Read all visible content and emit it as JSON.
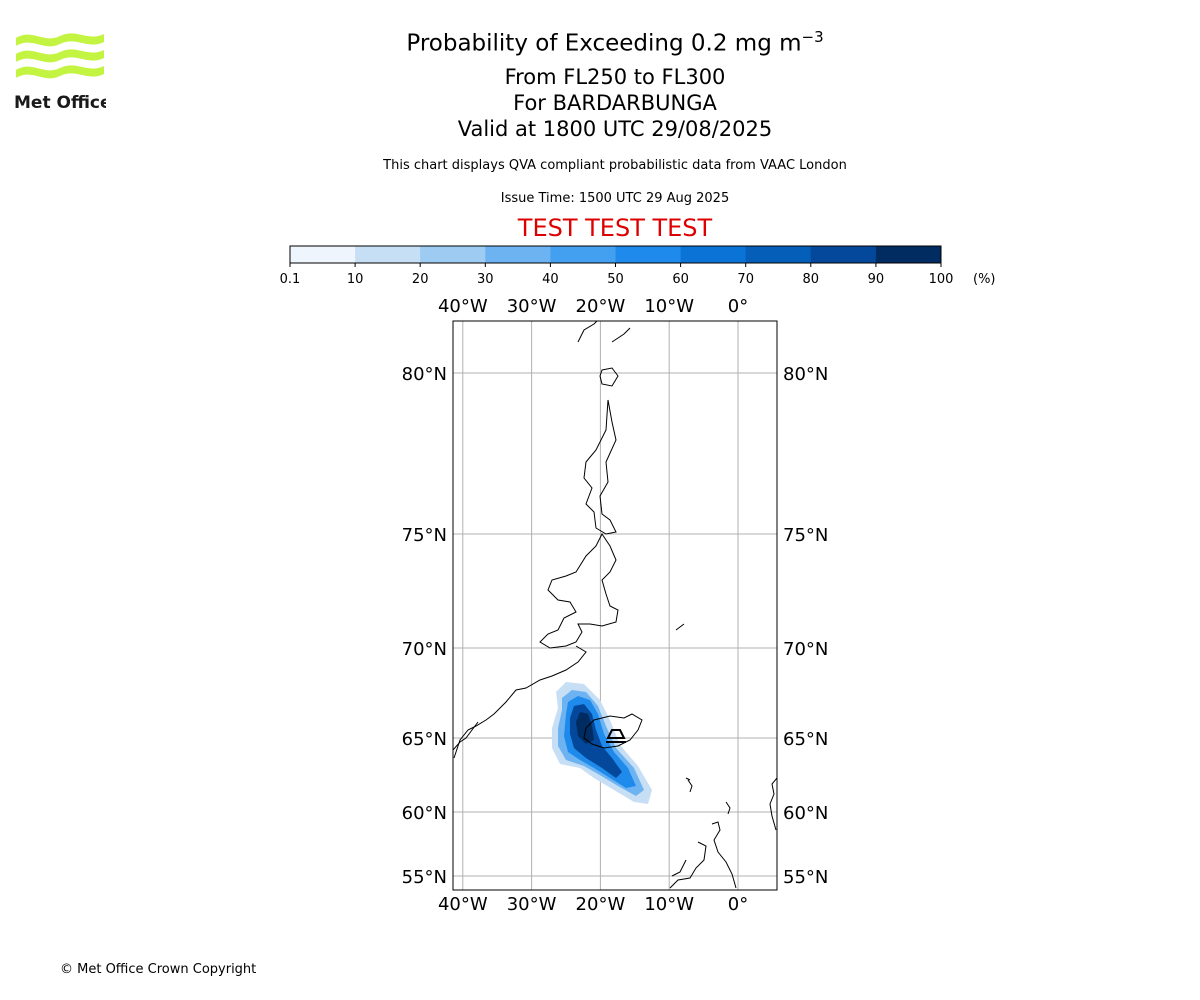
{
  "header": {
    "title_main": "Probability of Exceeding 0.2 mg m",
    "title_exponent": "−3",
    "level_range": "From FL250 to FL300",
    "volcano": "For BARDARBUNGA",
    "valid_time": "Valid at 1800 UTC 29/08/2025",
    "description": "This chart displays QVA compliant probabilistic data from VAAC London",
    "issue_time": "Issue Time: 1500 UTC 29 Aug 2025",
    "test_banner": "TEST TEST TEST",
    "test_color": "#dd0000"
  },
  "logo": {
    "text": "Met Office",
    "wave_color": "#c4f442",
    "icon": "met-office-waves-logo"
  },
  "colorbar": {
    "ticks": [
      "0.1",
      "10",
      "20",
      "30",
      "40",
      "50",
      "60",
      "70",
      "80",
      "90",
      "100"
    ],
    "unit": "(%)",
    "colors": [
      "#eef5fd",
      "#c7dff5",
      "#9ecbf2",
      "#6db3f2",
      "#43a0f0",
      "#1e8aec",
      "#0b73d6",
      "#055fb8",
      "#03489a",
      "#002c61"
    ]
  },
  "map": {
    "lon_labels": [
      "40°W",
      "30°W",
      "20°W",
      "10°W",
      "0°"
    ],
    "lon_values": [
      -40,
      -30,
      -20,
      -10,
      0
    ],
    "lat_labels": [
      "80°N",
      "75°N",
      "70°N",
      "65°N",
      "60°N",
      "55°N"
    ],
    "lat_values": [
      80,
      75,
      70,
      65,
      60,
      55
    ],
    "grid": true,
    "ash_plume_max_probability_percent": 100
  },
  "footer": {
    "copyright": "© Met Office Crown Copyright"
  }
}
